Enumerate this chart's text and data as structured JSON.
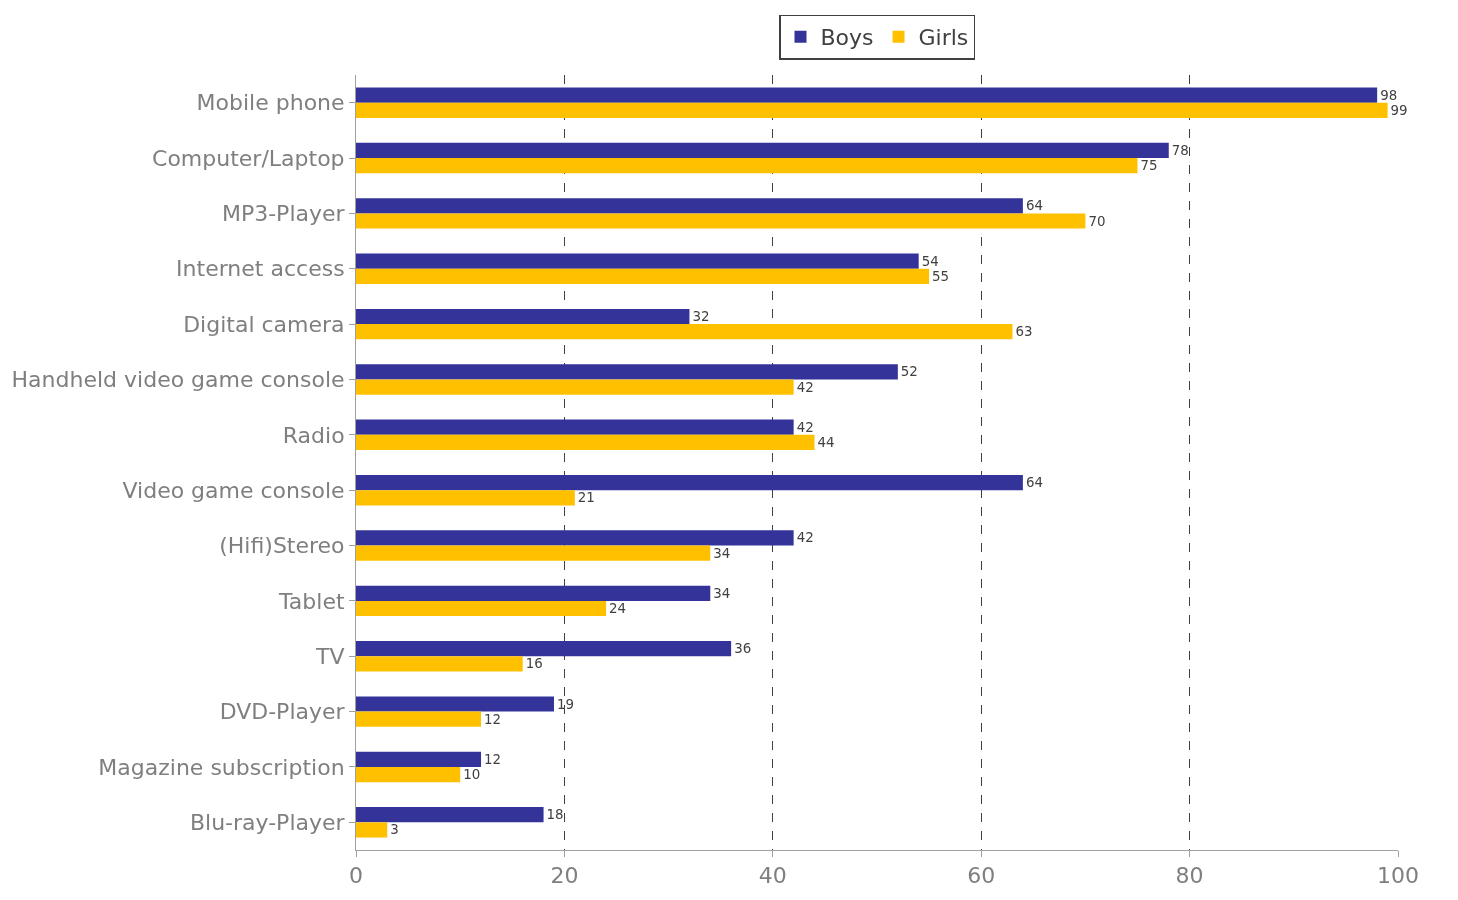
{
  "chart_data": {
    "type": "bar",
    "orientation": "horizontal",
    "categories": [
      "Mobile phone",
      "Computer/Laptop",
      "MP3-Player",
      "Internet access",
      "Digital camera",
      "Handheld video game console",
      "Radio",
      "Video game console",
      "(Hifi)Stereo",
      "Tablet",
      "TV",
      "DVD-Player",
      "Magazine subscription",
      "Blu-ray-Player"
    ],
    "series": [
      {
        "name": "Boys",
        "color": "#333399",
        "values": [
          98,
          78,
          64,
          54,
          32,
          52,
          42,
          64,
          42,
          34,
          36,
          19,
          12,
          18
        ]
      },
      {
        "name": "Girls",
        "color": "#ffc000",
        "values": [
          99,
          75,
          70,
          55,
          63,
          42,
          44,
          21,
          34,
          24,
          16,
          12,
          10,
          3
        ]
      }
    ],
    "xlim": [
      0,
      100
    ],
    "xticks": [
      0,
      20,
      40,
      60,
      80,
      100
    ],
    "grid": "x",
    "legend": "top",
    "data_labels": true
  }
}
